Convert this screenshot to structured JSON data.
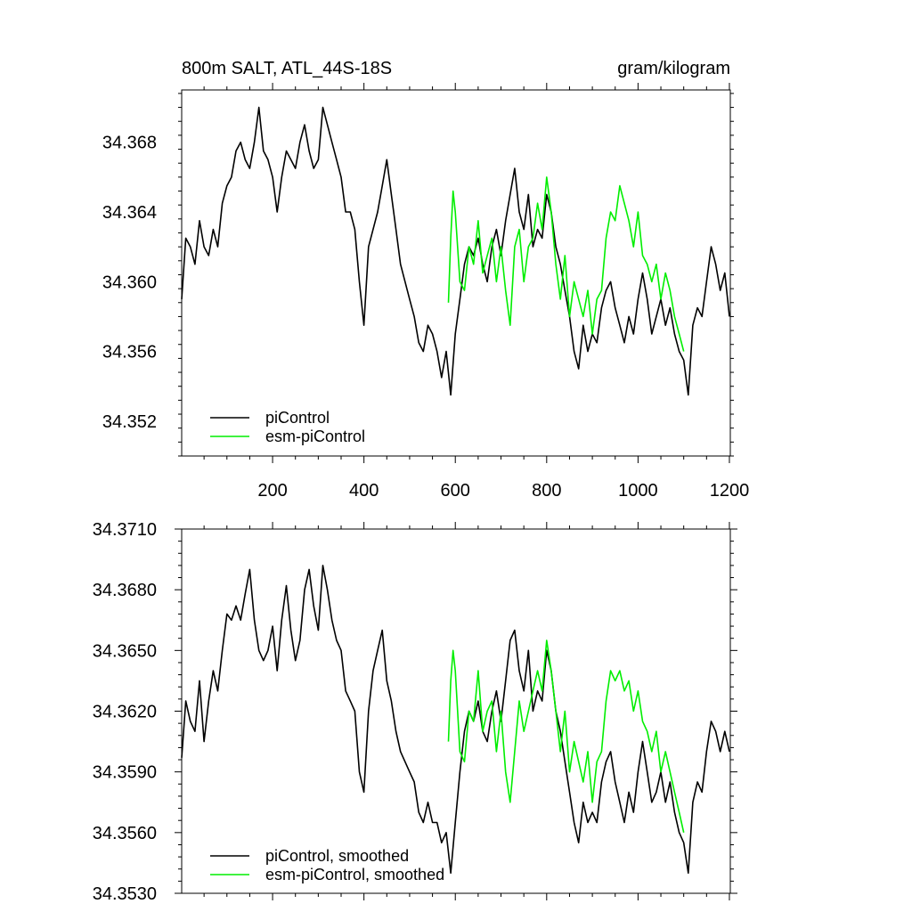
{
  "figure": {
    "left_title": "800m SALT, ATL_44S-18S",
    "right_title": "gram/kilogram"
  },
  "colors": {
    "piControl": "#000000",
    "esm_piControl": "#00ee00",
    "axis": "#000000"
  },
  "chart_data": [
    {
      "type": "line",
      "title": "800m SALT, ATL_44S-18S",
      "units": "gram/kilogram",
      "xlabel": "",
      "ylabel": "",
      "xlim": [
        1,
        1202
      ],
      "ylim": [
        34.35,
        34.371
      ],
      "xticks": [
        200,
        400,
        600,
        800,
        1000,
        1200
      ],
      "xtick_labels": [
        "200",
        "400",
        "600",
        "800",
        "1000",
        "1200"
      ],
      "yticks": [
        34.352,
        34.356,
        34.36,
        34.364,
        34.368
      ],
      "ytick_labels": [
        "34.352",
        "34.356",
        "34.360",
        "34.364",
        "34.368"
      ],
      "grid": false,
      "legend_position": "bottom-left",
      "series": [
        {
          "name": "piControl",
          "color": "#000000",
          "x": [
            1,
            10,
            20,
            30,
            40,
            50,
            60,
            70,
            80,
            90,
            100,
            110,
            120,
            130,
            140,
            150,
            160,
            170,
            180,
            190,
            200,
            210,
            220,
            230,
            240,
            250,
            260,
            270,
            280,
            290,
            300,
            310,
            320,
            330,
            340,
            350,
            360,
            370,
            380,
            390,
            400,
            410,
            420,
            430,
            440,
            450,
            460,
            470,
            480,
            490,
            500,
            510,
            520,
            530,
            540,
            550,
            560,
            570,
            580,
            590,
            600,
            610,
            620,
            630,
            640,
            650,
            660,
            670,
            680,
            690,
            700,
            710,
            720,
            730,
            740,
            750,
            760,
            770,
            780,
            790,
            800,
            810,
            820,
            830,
            840,
            850,
            860,
            870,
            880,
            890,
            900,
            910,
            920,
            930,
            940,
            950,
            960,
            970,
            980,
            990,
            1000,
            1010,
            1020,
            1030,
            1040,
            1050,
            1060,
            1070,
            1080,
            1090,
            1100,
            1110,
            1120,
            1130,
            1140,
            1150,
            1160,
            1170,
            1180,
            1190,
            1200
          ],
          "y": [
            34.359,
            34.3625,
            34.362,
            34.361,
            34.3635,
            34.362,
            34.3615,
            34.363,
            34.362,
            34.3645,
            34.3655,
            34.366,
            34.3675,
            34.368,
            34.367,
            34.3665,
            34.368,
            34.37,
            34.3675,
            34.367,
            34.366,
            34.364,
            34.366,
            34.3675,
            34.367,
            34.3665,
            34.368,
            34.369,
            34.3675,
            34.3665,
            34.367,
            34.37,
            34.369,
            34.368,
            34.367,
            34.366,
            34.364,
            34.364,
            34.363,
            34.36,
            34.3575,
            34.362,
            34.363,
            34.364,
            34.3655,
            34.367,
            34.365,
            34.363,
            34.361,
            34.36,
            34.359,
            34.358,
            34.3565,
            34.356,
            34.3575,
            34.357,
            34.356,
            34.3545,
            34.356,
            34.3535,
            34.357,
            34.359,
            34.361,
            34.362,
            34.3615,
            34.3625,
            34.361,
            34.36,
            34.362,
            34.363,
            34.3615,
            34.3635,
            34.365,
            34.3665,
            34.364,
            34.363,
            34.365,
            34.362,
            34.363,
            34.3625,
            34.365,
            34.364,
            34.362,
            34.361,
            34.3595,
            34.358,
            34.356,
            34.355,
            34.3575,
            34.356,
            34.357,
            34.3565,
            34.3585,
            34.3595,
            34.36,
            34.3585,
            34.3575,
            34.3565,
            34.358,
            34.357,
            34.359,
            34.3605,
            34.359,
            34.357,
            34.358,
            34.359,
            34.3575,
            34.3585,
            34.357,
            34.356,
            34.3555,
            34.3535,
            34.3575,
            34.3585,
            34.358,
            34.36,
            34.362,
            34.361,
            34.3595,
            34.3605,
            34.358
          ]
        },
        {
          "name": "esm-piControl",
          "color": "#00ee00",
          "x": [
            585,
            590,
            595,
            600,
            610,
            620,
            630,
            640,
            650,
            660,
            670,
            680,
            690,
            700,
            710,
            720,
            730,
            740,
            750,
            760,
            770,
            780,
            790,
            800,
            810,
            820,
            830,
            840,
            850,
            860,
            870,
            880,
            890,
            900,
            910,
            920,
            930,
            940,
            950,
            960,
            970,
            980,
            990,
            1000,
            1010,
            1020,
            1030,
            1040,
            1050,
            1060,
            1070,
            1080,
            1090,
            1100
          ],
          "y": [
            34.3588,
            34.3625,
            34.3652,
            34.364,
            34.36,
            34.3595,
            34.362,
            34.361,
            34.3635,
            34.3605,
            34.3615,
            34.3625,
            34.36,
            34.362,
            34.3595,
            34.3575,
            34.362,
            34.363,
            34.36,
            34.362,
            34.3625,
            34.3645,
            34.363,
            34.366,
            34.364,
            34.361,
            34.359,
            34.3615,
            34.358,
            34.36,
            34.359,
            34.358,
            34.3595,
            34.357,
            34.359,
            34.3595,
            34.3625,
            34.364,
            34.3635,
            34.3655,
            34.3645,
            34.3635,
            34.362,
            34.364,
            34.3615,
            34.361,
            34.36,
            34.361,
            34.359,
            34.3605,
            34.3595,
            34.358,
            34.357,
            34.356
          ]
        }
      ]
    },
    {
      "type": "line",
      "title": "",
      "xlabel": "",
      "ylabel": "",
      "xlim": [
        1,
        1202
      ],
      "ylim": [
        34.353,
        34.371
      ],
      "xticks": [
        200,
        400,
        600,
        800,
        1000,
        1200
      ],
      "xtick_labels": [],
      "yticks": [
        34.353,
        34.356,
        34.359,
        34.362,
        34.365,
        34.368,
        34.371
      ],
      "ytick_labels": [
        "34.3530",
        "34.3560",
        "34.3590",
        "34.3620",
        "34.3650",
        "34.3680",
        "34.3710"
      ],
      "grid": false,
      "legend_position": "bottom-left",
      "series": [
        {
          "name": "piControl, smoothed",
          "color": "#000000",
          "x": [
            1,
            10,
            20,
            30,
            40,
            50,
            60,
            70,
            80,
            90,
            100,
            110,
            120,
            130,
            140,
            150,
            160,
            170,
            180,
            190,
            200,
            210,
            220,
            230,
            240,
            250,
            260,
            270,
            280,
            290,
            300,
            310,
            320,
            330,
            340,
            350,
            360,
            370,
            380,
            390,
            400,
            410,
            420,
            430,
            440,
            450,
            460,
            470,
            480,
            490,
            500,
            510,
            520,
            530,
            540,
            550,
            560,
            570,
            580,
            590,
            600,
            610,
            620,
            630,
            640,
            650,
            660,
            670,
            680,
            690,
            700,
            710,
            720,
            730,
            740,
            750,
            760,
            770,
            780,
            790,
            800,
            810,
            820,
            830,
            840,
            850,
            860,
            870,
            880,
            890,
            900,
            910,
            920,
            930,
            940,
            950,
            960,
            970,
            980,
            990,
            1000,
            1010,
            1020,
            1030,
            1040,
            1050,
            1060,
            1070,
            1080,
            1090,
            1100,
            1110,
            1120,
            1130,
            1140,
            1150,
            1160,
            1170,
            1180,
            1190,
            1200
          ],
          "y": [
            34.3597,
            34.3625,
            34.3615,
            34.361,
            34.3635,
            34.3605,
            34.3625,
            34.364,
            34.363,
            34.365,
            34.3668,
            34.3665,
            34.3672,
            34.3665,
            34.3678,
            34.369,
            34.3665,
            34.365,
            34.3645,
            34.365,
            34.3662,
            34.364,
            34.3665,
            34.3682,
            34.366,
            34.3645,
            34.3655,
            34.368,
            34.369,
            34.3672,
            34.366,
            34.3692,
            34.368,
            34.3665,
            34.3655,
            34.365,
            34.363,
            34.3625,
            34.362,
            34.359,
            34.358,
            34.362,
            34.364,
            34.365,
            34.366,
            34.3635,
            34.3625,
            34.361,
            34.36,
            34.3595,
            34.359,
            34.3585,
            34.357,
            34.3565,
            34.3575,
            34.3565,
            34.3565,
            34.3555,
            34.356,
            34.354,
            34.3565,
            34.359,
            34.361,
            34.362,
            34.3615,
            34.3625,
            34.361,
            34.3605,
            34.362,
            34.363,
            34.3615,
            34.3635,
            34.3655,
            34.366,
            34.364,
            34.363,
            34.365,
            34.362,
            34.363,
            34.3625,
            34.365,
            34.364,
            34.362,
            34.361,
            34.3595,
            34.358,
            34.3565,
            34.3555,
            34.3575,
            34.3565,
            34.357,
            34.3565,
            34.3585,
            34.3595,
            34.36,
            34.3585,
            34.3575,
            34.3565,
            34.358,
            34.357,
            34.359,
            34.3605,
            34.359,
            34.3575,
            34.358,
            34.359,
            34.3575,
            34.3585,
            34.357,
            34.356,
            34.3555,
            34.354,
            34.3575,
            34.3585,
            34.358,
            34.36,
            34.3615,
            34.361,
            34.36,
            34.361,
            34.36
          ]
        },
        {
          "name": "esm-piControl, smoothed",
          "color": "#00ee00",
          "x": [
            585,
            590,
            595,
            600,
            610,
            620,
            630,
            640,
            650,
            660,
            670,
            680,
            690,
            700,
            710,
            720,
            730,
            740,
            750,
            760,
            770,
            780,
            790,
            800,
            810,
            820,
            830,
            840,
            850,
            860,
            870,
            880,
            890,
            900,
            910,
            920,
            930,
            940,
            950,
            960,
            970,
            980,
            990,
            1000,
            1010,
            1020,
            1030,
            1040,
            1050,
            1060,
            1070,
            1080,
            1090,
            1100
          ],
          "y": [
            34.3605,
            34.3635,
            34.365,
            34.364,
            34.36,
            34.3595,
            34.362,
            34.3615,
            34.364,
            34.361,
            34.362,
            34.3625,
            34.36,
            34.362,
            34.359,
            34.3575,
            34.36,
            34.3625,
            34.361,
            34.362,
            34.363,
            34.364,
            34.363,
            34.3655,
            34.364,
            34.362,
            34.36,
            34.362,
            34.359,
            34.3605,
            34.3595,
            34.3585,
            34.36,
            34.3575,
            34.3595,
            34.36,
            34.3625,
            34.364,
            34.3635,
            34.364,
            34.363,
            34.3635,
            34.362,
            34.363,
            34.3615,
            34.361,
            34.36,
            34.361,
            34.359,
            34.36,
            34.359,
            34.358,
            34.357,
            34.356
          ]
        }
      ]
    }
  ]
}
